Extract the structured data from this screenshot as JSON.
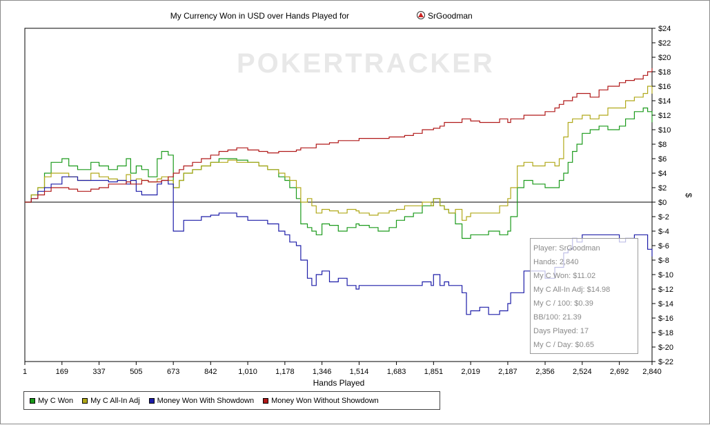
{
  "chart_data": {
    "type": "line",
    "title": "My Currency Won in USD over Hands Played for",
    "player_name": "SrGoodman",
    "watermark": "POKERTRACKER",
    "xlabel": "Hands Played",
    "ylabel": "$",
    "xlim": [
      1,
      2840
    ],
    "ylim": [
      -22,
      24
    ],
    "x_ticks": [
      1,
      169,
      337,
      505,
      673,
      842,
      1010,
      1178,
      1346,
      1514,
      1683,
      1851,
      2019,
      2187,
      2356,
      2524,
      2692,
      2840
    ],
    "x_tick_labels": [
      "1",
      "169",
      "337",
      "505",
      "673",
      "842",
      "1,010",
      "1,178",
      "1,346",
      "1,514",
      "1,683",
      "1,851",
      "2,019",
      "2,187",
      "2,356",
      "2,524",
      "2,692",
      "2,840"
    ],
    "y_ticks": [
      24,
      22,
      20,
      18,
      16,
      14,
      12,
      10,
      8,
      6,
      4,
      2,
      0,
      -2,
      -4,
      -6,
      -8,
      -10,
      -12,
      -14,
      -16,
      -18,
      -20,
      -22
    ],
    "y_tick_labels": [
      "$24",
      "$22",
      "$20",
      "$18",
      "$16",
      "$14",
      "$12",
      "$10",
      "$8",
      "$6",
      "$4",
      "$2",
      "$0",
      "$-2",
      "$-4",
      "$-6",
      "$-8",
      "$-10",
      "$-12",
      "$-14",
      "$-16",
      "$-18",
      "$-20",
      "$-22"
    ],
    "grid": false,
    "legend_position": "bottom-left",
    "series": [
      {
        "name": "My C Won",
        "color": "#1a9a1a",
        "x": [
          1,
          30,
          60,
          90,
          120,
          169,
          200,
          240,
          300,
          337,
          380,
          420,
          460,
          480,
          505,
          530,
          560,
          600,
          620,
          650,
          673,
          700,
          720,
          760,
          800,
          842,
          880,
          920,
          960,
          1010,
          1060,
          1100,
          1150,
          1178,
          1200,
          1230,
          1250,
          1280,
          1300,
          1320,
          1346,
          1380,
          1420,
          1460,
          1500,
          1514,
          1560,
          1600,
          1650,
          1683,
          1720,
          1760,
          1800,
          1840,
          1851,
          1880,
          1900,
          1920,
          1950,
          1980,
          2000,
          2019,
          2060,
          2100,
          2150,
          2187,
          2200,
          2230,
          2260,
          2300,
          2356,
          2400,
          2420,
          2440,
          2460,
          2480,
          2500,
          2524,
          2560,
          2600,
          2640,
          2692,
          2720,
          2760,
          2800,
          2820,
          2840
        ],
        "y": [
          0,
          1,
          2,
          4,
          5.5,
          6,
          5,
          4.5,
          5.5,
          5,
          4.5,
          5,
          6,
          4,
          5,
          4.5,
          3.5,
          6,
          7,
          6.5,
          2,
          3,
          4,
          4.5,
          5,
          5.5,
          6,
          6,
          5.8,
          5.5,
          5,
          4.5,
          3.5,
          3,
          2,
          0.5,
          -3,
          -3.5,
          -4,
          -4.5,
          -3,
          -3.2,
          -4,
          -3.5,
          -3,
          -3.2,
          -3.5,
          -4,
          -3.5,
          -2.5,
          -2,
          -1.5,
          -0.5,
          -0.5,
          0.5,
          -0.5,
          -1,
          -1.5,
          -3,
          -5,
          -5,
          -4.5,
          -4.5,
          -4,
          -4.5,
          -4,
          -2,
          2,
          3,
          2.5,
          2,
          2,
          3,
          4,
          5.5,
          7,
          8,
          9.5,
          10,
          10.5,
          10,
          10.5,
          11.5,
          12.5,
          13,
          12.5,
          11.02
        ]
      },
      {
        "name": "My C All-In Adj",
        "color": "#b0a818",
        "x": [
          1,
          30,
          60,
          90,
          120,
          169,
          200,
          240,
          300,
          337,
          380,
          420,
          460,
          480,
          505,
          530,
          560,
          600,
          620,
          650,
          673,
          700,
          720,
          760,
          800,
          842,
          880,
          920,
          960,
          1010,
          1060,
          1100,
          1150,
          1178,
          1200,
          1230,
          1250,
          1280,
          1300,
          1320,
          1346,
          1380,
          1420,
          1460,
          1500,
          1514,
          1560,
          1600,
          1650,
          1683,
          1720,
          1760,
          1800,
          1840,
          1851,
          1880,
          1900,
          1920,
          1950,
          1980,
          2000,
          2019,
          2060,
          2100,
          2150,
          2187,
          2200,
          2230,
          2260,
          2300,
          2356,
          2400,
          2420,
          2440,
          2460,
          2480,
          2500,
          2524,
          2560,
          2600,
          2640,
          2692,
          2720,
          2760,
          2800,
          2820,
          2840
        ],
        "y": [
          0,
          1,
          2,
          3.5,
          4,
          4,
          3.5,
          3,
          4,
          3.5,
          3.2,
          3,
          3.8,
          3,
          3.2,
          3,
          2.8,
          3.2,
          3.5,
          3,
          2,
          3,
          4,
          4.5,
          5,
          5.5,
          5.5,
          5.8,
          5.5,
          5.5,
          5,
          4.5,
          4,
          3.5,
          3,
          2,
          0,
          0.5,
          -0.5,
          -1.5,
          -1,
          -1.2,
          -1.5,
          -1,
          -1.2,
          -1.5,
          -1.8,
          -1.5,
          -1.2,
          -1,
          -0.5,
          -0.5,
          0,
          -0.5,
          0.5,
          -0.5,
          -1,
          -1.5,
          -1,
          -2.5,
          -2,
          -1.5,
          -1.5,
          -1.5,
          -0.5,
          0.5,
          2,
          5,
          5.5,
          5,
          5.5,
          5,
          6,
          9,
          11,
          11.5,
          11.5,
          12,
          11.5,
          12,
          13,
          13,
          14,
          14.5,
          15,
          16,
          14.98
        ]
      },
      {
        "name": "Money Won With Showdown",
        "color": "#1c1ca8",
        "x": [
          1,
          30,
          60,
          90,
          120,
          169,
          200,
          240,
          300,
          337,
          380,
          420,
          460,
          480,
          505,
          530,
          560,
          600,
          620,
          650,
          673,
          700,
          720,
          760,
          800,
          842,
          880,
          920,
          960,
          1010,
          1060,
          1100,
          1150,
          1178,
          1200,
          1230,
          1250,
          1280,
          1300,
          1320,
          1346,
          1380,
          1420,
          1460,
          1500,
          1514,
          1560,
          1600,
          1650,
          1683,
          1720,
          1760,
          1800,
          1840,
          1851,
          1880,
          1900,
          1920,
          1950,
          1980,
          2000,
          2019,
          2060,
          2100,
          2150,
          2187,
          2200,
          2230,
          2260,
          2300,
          2356,
          2400,
          2420,
          2440,
          2460,
          2480,
          2500,
          2524,
          2560,
          2600,
          2640,
          2692,
          2720,
          2760,
          2800,
          2820,
          2840
        ],
        "y": [
          0,
          0.5,
          1.5,
          2,
          2.5,
          3.5,
          3.5,
          3,
          3,
          3,
          2.8,
          3,
          2.5,
          3,
          1.5,
          1,
          1,
          2.5,
          3,
          2.5,
          -4,
          -4,
          -2.5,
          -2.5,
          -2,
          -1.8,
          -1.5,
          -1.5,
          -2,
          -2.5,
          -2.5,
          -3,
          -4,
          -4.5,
          -5.5,
          -6,
          -8,
          -10.5,
          -11.5,
          -10,
          -9.5,
          -11,
          -10.5,
          -11.5,
          -12,
          -11.5,
          -11.5,
          -11.5,
          -11.5,
          -11.5,
          -11.5,
          -11.5,
          -11,
          -11.5,
          -10,
          -11.5,
          -11,
          -11.5,
          -11.5,
          -12.5,
          -15.5,
          -15,
          -14.5,
          -15.5,
          -15,
          -14,
          -12.5,
          -12.5,
          -9.5,
          -9.5,
          -10.5,
          -9,
          -9,
          -7,
          -6.5,
          -5,
          -5.5,
          -4.5,
          -4.5,
          -4.5,
          -4.5,
          -5.5,
          -5,
          -4.5,
          -4.5,
          -6.5,
          -7.5
        ]
      },
      {
        "name": "Money Won Without Showdown",
        "color": "#b01818",
        "x": [
          1,
          30,
          60,
          90,
          120,
          169,
          200,
          240,
          300,
          337,
          380,
          420,
          460,
          480,
          505,
          530,
          560,
          600,
          620,
          650,
          673,
          700,
          720,
          760,
          800,
          842,
          880,
          920,
          960,
          1010,
          1060,
          1100,
          1150,
          1178,
          1200,
          1230,
          1250,
          1280,
          1300,
          1320,
          1346,
          1380,
          1420,
          1460,
          1500,
          1514,
          1560,
          1600,
          1650,
          1683,
          1720,
          1760,
          1800,
          1840,
          1851,
          1880,
          1900,
          1920,
          1950,
          1980,
          2000,
          2019,
          2060,
          2100,
          2150,
          2187,
          2200,
          2230,
          2260,
          2300,
          2356,
          2400,
          2420,
          2440,
          2460,
          2480,
          2500,
          2524,
          2560,
          2600,
          2640,
          2692,
          2720,
          2760,
          2800,
          2820,
          2840
        ],
        "y": [
          0,
          0.5,
          1,
          1.5,
          2,
          2,
          1.8,
          1.5,
          1.8,
          2,
          2.5,
          2.5,
          2.8,
          2.5,
          2.5,
          3,
          2.8,
          2.8,
          3,
          3.5,
          4,
          4.5,
          5,
          5.5,
          6,
          6.5,
          7,
          7.2,
          7.5,
          7.2,
          7,
          6.8,
          7,
          7,
          7,
          7.2,
          7.5,
          7.5,
          7.5,
          8,
          8,
          8.2,
          8.5,
          8.5,
          8.5,
          8.8,
          8.8,
          8.8,
          9,
          9,
          9.2,
          9.5,
          10,
          10,
          10.2,
          10.5,
          11,
          11,
          11,
          11.5,
          11.5,
          11.2,
          11,
          11,
          11.5,
          11,
          11.5,
          11.5,
          12,
          12,
          12.5,
          13,
          13.5,
          14,
          14,
          14.5,
          15,
          15,
          14.5,
          15.5,
          16,
          16.5,
          16.8,
          17,
          17.5,
          18,
          18.5
        ]
      }
    ]
  },
  "tooltip": {
    "lines": [
      "Player: SrGoodman",
      "Hands: 2,840",
      "My C Won: $11.02",
      "My C All-In Adj: $14.98",
      "My C / 100: $0.39",
      "BB/100: 21.39",
      "Days Played: 17",
      "My C / Day: $0.65"
    ]
  }
}
